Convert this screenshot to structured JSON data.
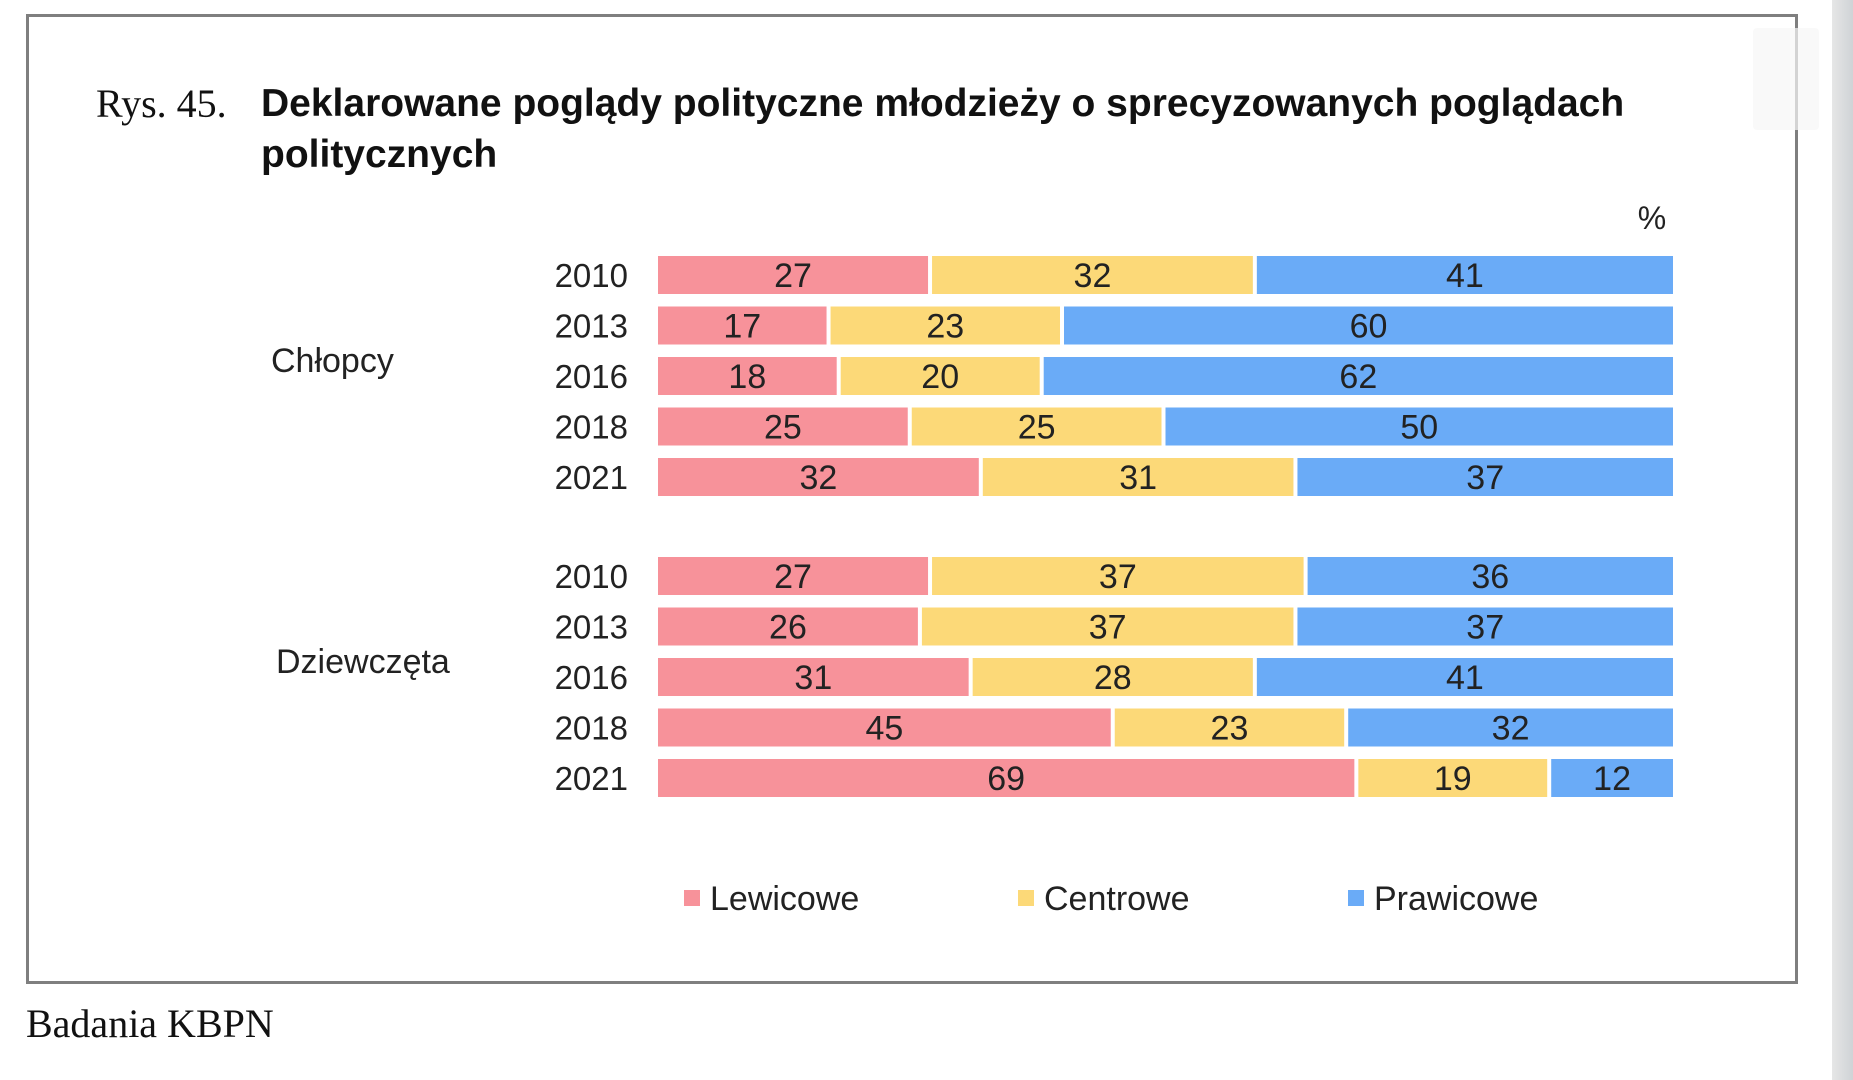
{
  "title_prefix": "Rys. 45.",
  "source_note": "Badania KBPN",
  "chart_data": {
    "type": "bar",
    "orientation": "horizontal",
    "stacked": true,
    "title": "Deklarowane poglądy polityczne młodzieży o sprecyzowanych poglądach politycznych",
    "unit": "%",
    "legend_position": "bottom",
    "series": [
      {
        "name": "Lewicowe",
        "color": "#f7929a"
      },
      {
        "name": "Centrowe",
        "color": "#fcd978"
      },
      {
        "name": "Prawicowe",
        "color": "#6aabf7"
      }
    ],
    "groups": [
      {
        "name": "Chłopcy",
        "rows": [
          {
            "year": "2010",
            "values": [
              27,
              32,
              41
            ]
          },
          {
            "year": "2013",
            "values": [
              17,
              23,
              60
            ]
          },
          {
            "year": "2016",
            "values": [
              18,
              20,
              62
            ]
          },
          {
            "year": "2018",
            "values": [
              25,
              25,
              50
            ]
          },
          {
            "year": "2021",
            "values": [
              32,
              31,
              37
            ]
          }
        ]
      },
      {
        "name": "Dziewczęta",
        "rows": [
          {
            "year": "2010",
            "values": [
              27,
              37,
              36
            ]
          },
          {
            "year": "2013",
            "values": [
              26,
              37,
              37
            ]
          },
          {
            "year": "2016",
            "values": [
              31,
              28,
              41
            ]
          },
          {
            "year": "2018",
            "values": [
              45,
              23,
              32
            ]
          },
          {
            "year": "2021",
            "values": [
              69,
              19,
              12
            ]
          }
        ]
      }
    ]
  }
}
